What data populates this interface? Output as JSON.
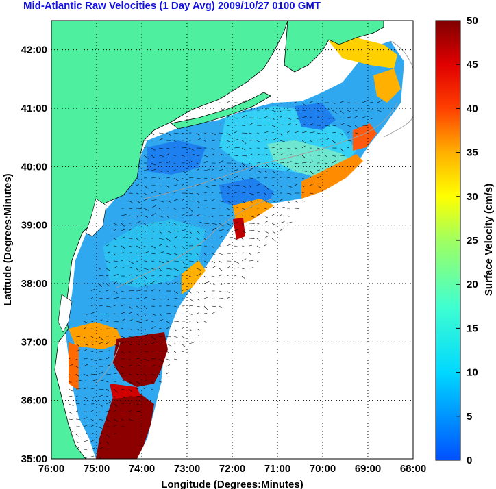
{
  "title": "Mid-Atlantic Raw Velocities (1 Day Avg) 2009/10/27 0100 GMT",
  "xlabel": "Longitude (Degrees:Minutes)",
  "ylabel": "Latitude (Degrees:Minutes)",
  "colorbar_label": "Surface Velocity (cm/s)",
  "x_ticks": [
    "76:00",
    "75:00",
    "74:00",
    "73:00",
    "72:00",
    "71:00",
    "70:00",
    "69:00",
    "68:00"
  ],
  "y_ticks": [
    "35:00",
    "36:00",
    "37:00",
    "38:00",
    "39:00",
    "40:00",
    "41:00",
    "42:00"
  ],
  "colorbar_ticks": [
    "0",
    "5",
    "10",
    "15",
    "20",
    "25",
    "30",
    "35",
    "40",
    "45",
    "50"
  ],
  "colors": {
    "land": "#4ef0a0",
    "title": "#1010e0",
    "grid": "#000000",
    "bathymetry": "#a0a0a0"
  },
  "map": {
    "lon_range": [
      -76,
      -68
    ],
    "lat_range": [
      35,
      42.5
    ],
    "velocity_range": [
      0,
      50
    ],
    "colormap": "jet"
  }
}
